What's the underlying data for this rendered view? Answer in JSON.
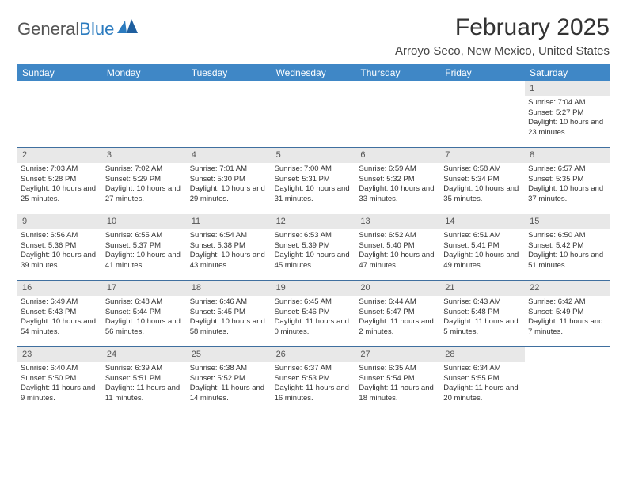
{
  "brand": {
    "text1": "General",
    "text2": "Blue"
  },
  "title": "February 2025",
  "location": "Arroyo Seco, New Mexico, United States",
  "colors": {
    "header_bg": "#3f87c6",
    "header_text": "#ffffff",
    "daynum_bg": "#e8e8e8",
    "rule": "#3f6f9f",
    "brand_blue": "#2b7bbf"
  },
  "day_names": [
    "Sunday",
    "Monday",
    "Tuesday",
    "Wednesday",
    "Thursday",
    "Friday",
    "Saturday"
  ],
  "weeks": [
    [
      null,
      null,
      null,
      null,
      null,
      null,
      {
        "d": "1",
        "sr": "Sunrise: 7:04 AM",
        "ss": "Sunset: 5:27 PM",
        "dl": "Daylight: 10 hours and 23 minutes."
      }
    ],
    [
      {
        "d": "2",
        "sr": "Sunrise: 7:03 AM",
        "ss": "Sunset: 5:28 PM",
        "dl": "Daylight: 10 hours and 25 minutes."
      },
      {
        "d": "3",
        "sr": "Sunrise: 7:02 AM",
        "ss": "Sunset: 5:29 PM",
        "dl": "Daylight: 10 hours and 27 minutes."
      },
      {
        "d": "4",
        "sr": "Sunrise: 7:01 AM",
        "ss": "Sunset: 5:30 PM",
        "dl": "Daylight: 10 hours and 29 minutes."
      },
      {
        "d": "5",
        "sr": "Sunrise: 7:00 AM",
        "ss": "Sunset: 5:31 PM",
        "dl": "Daylight: 10 hours and 31 minutes."
      },
      {
        "d": "6",
        "sr": "Sunrise: 6:59 AM",
        "ss": "Sunset: 5:32 PM",
        "dl": "Daylight: 10 hours and 33 minutes."
      },
      {
        "d": "7",
        "sr": "Sunrise: 6:58 AM",
        "ss": "Sunset: 5:34 PM",
        "dl": "Daylight: 10 hours and 35 minutes."
      },
      {
        "d": "8",
        "sr": "Sunrise: 6:57 AM",
        "ss": "Sunset: 5:35 PM",
        "dl": "Daylight: 10 hours and 37 minutes."
      }
    ],
    [
      {
        "d": "9",
        "sr": "Sunrise: 6:56 AM",
        "ss": "Sunset: 5:36 PM",
        "dl": "Daylight: 10 hours and 39 minutes."
      },
      {
        "d": "10",
        "sr": "Sunrise: 6:55 AM",
        "ss": "Sunset: 5:37 PM",
        "dl": "Daylight: 10 hours and 41 minutes."
      },
      {
        "d": "11",
        "sr": "Sunrise: 6:54 AM",
        "ss": "Sunset: 5:38 PM",
        "dl": "Daylight: 10 hours and 43 minutes."
      },
      {
        "d": "12",
        "sr": "Sunrise: 6:53 AM",
        "ss": "Sunset: 5:39 PM",
        "dl": "Daylight: 10 hours and 45 minutes."
      },
      {
        "d": "13",
        "sr": "Sunrise: 6:52 AM",
        "ss": "Sunset: 5:40 PM",
        "dl": "Daylight: 10 hours and 47 minutes."
      },
      {
        "d": "14",
        "sr": "Sunrise: 6:51 AM",
        "ss": "Sunset: 5:41 PM",
        "dl": "Daylight: 10 hours and 49 minutes."
      },
      {
        "d": "15",
        "sr": "Sunrise: 6:50 AM",
        "ss": "Sunset: 5:42 PM",
        "dl": "Daylight: 10 hours and 51 minutes."
      }
    ],
    [
      {
        "d": "16",
        "sr": "Sunrise: 6:49 AM",
        "ss": "Sunset: 5:43 PM",
        "dl": "Daylight: 10 hours and 54 minutes."
      },
      {
        "d": "17",
        "sr": "Sunrise: 6:48 AM",
        "ss": "Sunset: 5:44 PM",
        "dl": "Daylight: 10 hours and 56 minutes."
      },
      {
        "d": "18",
        "sr": "Sunrise: 6:46 AM",
        "ss": "Sunset: 5:45 PM",
        "dl": "Daylight: 10 hours and 58 minutes."
      },
      {
        "d": "19",
        "sr": "Sunrise: 6:45 AM",
        "ss": "Sunset: 5:46 PM",
        "dl": "Daylight: 11 hours and 0 minutes."
      },
      {
        "d": "20",
        "sr": "Sunrise: 6:44 AM",
        "ss": "Sunset: 5:47 PM",
        "dl": "Daylight: 11 hours and 2 minutes."
      },
      {
        "d": "21",
        "sr": "Sunrise: 6:43 AM",
        "ss": "Sunset: 5:48 PM",
        "dl": "Daylight: 11 hours and 5 minutes."
      },
      {
        "d": "22",
        "sr": "Sunrise: 6:42 AM",
        "ss": "Sunset: 5:49 PM",
        "dl": "Daylight: 11 hours and 7 minutes."
      }
    ],
    [
      {
        "d": "23",
        "sr": "Sunrise: 6:40 AM",
        "ss": "Sunset: 5:50 PM",
        "dl": "Daylight: 11 hours and 9 minutes."
      },
      {
        "d": "24",
        "sr": "Sunrise: 6:39 AM",
        "ss": "Sunset: 5:51 PM",
        "dl": "Daylight: 11 hours and 11 minutes."
      },
      {
        "d": "25",
        "sr": "Sunrise: 6:38 AM",
        "ss": "Sunset: 5:52 PM",
        "dl": "Daylight: 11 hours and 14 minutes."
      },
      {
        "d": "26",
        "sr": "Sunrise: 6:37 AM",
        "ss": "Sunset: 5:53 PM",
        "dl": "Daylight: 11 hours and 16 minutes."
      },
      {
        "d": "27",
        "sr": "Sunrise: 6:35 AM",
        "ss": "Sunset: 5:54 PM",
        "dl": "Daylight: 11 hours and 18 minutes."
      },
      {
        "d": "28",
        "sr": "Sunrise: 6:34 AM",
        "ss": "Sunset: 5:55 PM",
        "dl": "Daylight: 11 hours and 20 minutes."
      },
      null
    ]
  ]
}
